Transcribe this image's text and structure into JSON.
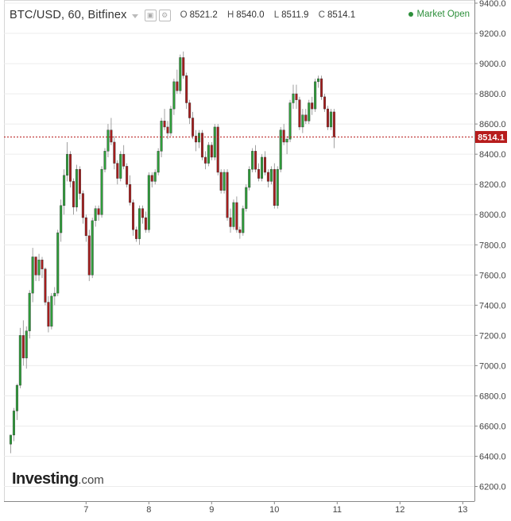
{
  "header": {
    "symbol": "BTC/USD, 60, Bitfinex",
    "open_label": "O",
    "open": "8521.2",
    "high_label": "H",
    "high": "8540.0",
    "low_label": "L",
    "low": "8511.9",
    "close_label": "C",
    "close": "8514.1",
    "settings_icon": "gear-icon",
    "window_icon": "window-icon"
  },
  "status": {
    "market": "Market Open",
    "color": "#2c8f3a"
  },
  "logo": {
    "main": "Investing",
    "suffix": ".com"
  },
  "colors": {
    "up": "#2e9e3a",
    "down": "#a61d1d",
    "price_line": "#b71c1c",
    "price_label_bg": "#b71c1c",
    "grid": "#ececec",
    "axis": "#888888"
  },
  "chart_data": {
    "type": "candlestick",
    "title": "BTC/USD, 60, Bitfinex",
    "xlabel": "",
    "ylabel": "",
    "ylim": [
      6100,
      9420
    ],
    "y_ticks": [
      6200,
      6400,
      6600,
      6800,
      7000,
      7200,
      7400,
      7600,
      7800,
      8000,
      8200,
      8400,
      8600,
      8800,
      9000,
      9200,
      9400
    ],
    "x_tick_labels": [
      "7",
      "8",
      "9",
      "10",
      "11",
      "12",
      "13"
    ],
    "x_tick_index": [
      24,
      44,
      64,
      84,
      104,
      124,
      144
    ],
    "last_price": 8514.1,
    "grid": "horizontal",
    "candles": [
      [
        6480,
        6540,
        6420,
        6540
      ],
      [
        6540,
        6720,
        6500,
        6700
      ],
      [
        6700,
        6880,
        6640,
        6870
      ],
      [
        6870,
        7250,
        6850,
        7200
      ],
      [
        7200,
        7300,
        7000,
        7050
      ],
      [
        7050,
        7260,
        6980,
        7230
      ],
      [
        7230,
        7500,
        7180,
        7480
      ],
      [
        7480,
        7780,
        7420,
        7720
      ],
      [
        7720,
        7720,
        7560,
        7600
      ],
      [
        7600,
        7740,
        7560,
        7700
      ],
      [
        7700,
        7720,
        7580,
        7640
      ],
      [
        7640,
        7650,
        7400,
        7420
      ],
      [
        7420,
        7460,
        7220,
        7260
      ],
      [
        7260,
        7480,
        7240,
        7460
      ],
      [
        7460,
        7520,
        7400,
        7480
      ],
      [
        7480,
        7900,
        7460,
        7880
      ],
      [
        7880,
        8100,
        7820,
        8060
      ],
      [
        8060,
        8300,
        8000,
        8260
      ],
      [
        8260,
        8480,
        8220,
        8400
      ],
      [
        8400,
        8420,
        8180,
        8220
      ],
      [
        8220,
        8240,
        8000,
        8050
      ],
      [
        8050,
        8330,
        8020,
        8300
      ],
      [
        8300,
        8320,
        8100,
        8140
      ],
      [
        8140,
        8160,
        7940,
        7980
      ],
      [
        7980,
        8000,
        7820,
        7860
      ],
      [
        7860,
        7900,
        7560,
        7600
      ],
      [
        7600,
        7980,
        7580,
        7960
      ],
      [
        7960,
        8060,
        7920,
        8040
      ],
      [
        8040,
        8060,
        7960,
        8000
      ],
      [
        8000,
        8320,
        7980,
        8300
      ],
      [
        8300,
        8440,
        8280,
        8420
      ],
      [
        8420,
        8600,
        8380,
        8560
      ],
      [
        8560,
        8640,
        8460,
        8480
      ],
      [
        8480,
        8520,
        8300,
        8340
      ],
      [
        8340,
        8360,
        8200,
        8240
      ],
      [
        8240,
        8420,
        8220,
        8400
      ],
      [
        8400,
        8460,
        8300,
        8320
      ],
      [
        8320,
        8340,
        8180,
        8200
      ],
      [
        8200,
        8260,
        8060,
        8080
      ],
      [
        8080,
        8100,
        7860,
        7900
      ],
      [
        7900,
        7920,
        7820,
        7840
      ],
      [
        7840,
        8060,
        7800,
        8040
      ],
      [
        8040,
        8060,
        7940,
        7980
      ],
      [
        7980,
        8020,
        7880,
        7900
      ],
      [
        7900,
        8280,
        7880,
        8260
      ],
      [
        8260,
        8280,
        8180,
        8220
      ],
      [
        8220,
        8300,
        8200,
        8280
      ],
      [
        8280,
        8440,
        8260,
        8420
      ],
      [
        8420,
        8640,
        8380,
        8620
      ],
      [
        8620,
        8700,
        8560,
        8580
      ],
      [
        8580,
        8620,
        8500,
        8540
      ],
      [
        8540,
        8720,
        8520,
        8700
      ],
      [
        8700,
        8900,
        8660,
        8880
      ],
      [
        8880,
        8960,
        8800,
        8820
      ],
      [
        8820,
        9060,
        8800,
        9040
      ],
      [
        9040,
        9080,
        8900,
        8920
      ],
      [
        8920,
        8940,
        8700,
        8740
      ],
      [
        8740,
        8760,
        8600,
        8640
      ],
      [
        8640,
        8680,
        8500,
        8520
      ],
      [
        8520,
        8560,
        8420,
        8480
      ],
      [
        8480,
        8560,
        8440,
        8540
      ],
      [
        8540,
        8560,
        8360,
        8380
      ],
      [
        8380,
        8420,
        8300,
        8340
      ],
      [
        8340,
        8480,
        8320,
        8460
      ],
      [
        8460,
        8480,
        8360,
        8380
      ],
      [
        8380,
        8600,
        8360,
        8580
      ],
      [
        8580,
        8600,
        8260,
        8280
      ],
      [
        8280,
        8300,
        8140,
        8160
      ],
      [
        8160,
        8300,
        8140,
        8280
      ],
      [
        8280,
        8300,
        7960,
        7980
      ],
      [
        7980,
        8040,
        7880,
        7920
      ],
      [
        7920,
        8100,
        7900,
        8080
      ],
      [
        8080,
        8120,
        7880,
        7900
      ],
      [
        7900,
        7920,
        7840,
        7880
      ],
      [
        7880,
        8060,
        7860,
        8040
      ],
      [
        8040,
        8200,
        8020,
        8180
      ],
      [
        8180,
        8320,
        8160,
        8300
      ],
      [
        8300,
        8440,
        8280,
        8420
      ],
      [
        8420,
        8460,
        8280,
        8300
      ],
      [
        8300,
        8340,
        8220,
        8240
      ],
      [
        8240,
        8400,
        8220,
        8380
      ],
      [
        8380,
        8420,
        8260,
        8280
      ],
      [
        8280,
        8300,
        8180,
        8220
      ],
      [
        8220,
        8320,
        8200,
        8300
      ],
      [
        8300,
        8340,
        8040,
        8060
      ],
      [
        8060,
        8320,
        8040,
        8300
      ],
      [
        8300,
        8580,
        8280,
        8560
      ],
      [
        8560,
        8600,
        8460,
        8480
      ],
      [
        8480,
        8520,
        8400,
        8500
      ],
      [
        8500,
        8760,
        8480,
        8740
      ],
      [
        8740,
        8860,
        8700,
        8800
      ],
      [
        8800,
        8860,
        8700,
        8760
      ],
      [
        8760,
        8780,
        8560,
        8580
      ],
      [
        8580,
        8700,
        8540,
        8660
      ],
      [
        8660,
        8700,
        8600,
        8620
      ],
      [
        8620,
        8760,
        8600,
        8740
      ],
      [
        8740,
        8780,
        8660,
        8700
      ],
      [
        8700,
        8900,
        8680,
        8880
      ],
      [
        8880,
        8920,
        8840,
        8900
      ],
      [
        8900,
        8920,
        8760,
        8780
      ],
      [
        8780,
        8800,
        8680,
        8700
      ],
      [
        8700,
        8720,
        8560,
        8580
      ],
      [
        8580,
        8700,
        8560,
        8680
      ],
      [
        8680,
        8700,
        8440,
        8514.1
      ]
    ]
  }
}
